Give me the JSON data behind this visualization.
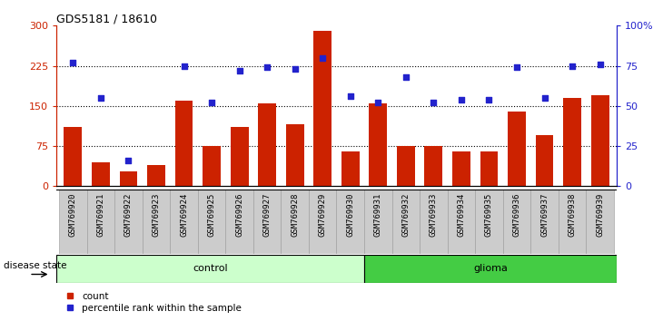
{
  "title": "GDS5181 / 18610",
  "samples": [
    "GSM769920",
    "GSM769921",
    "GSM769922",
    "GSM769923",
    "GSM769924",
    "GSM769925",
    "GSM769926",
    "GSM769927",
    "GSM769928",
    "GSM769929",
    "GSM769930",
    "GSM769931",
    "GSM769932",
    "GSM769933",
    "GSM769934",
    "GSM769935",
    "GSM769936",
    "GSM769937",
    "GSM769938",
    "GSM769939"
  ],
  "counts": [
    110,
    45,
    28,
    40,
    160,
    75,
    110,
    155,
    115,
    290,
    65,
    155,
    75,
    75,
    65,
    65,
    140,
    95,
    165,
    170
  ],
  "percentiles": [
    77,
    55,
    16,
    null,
    75,
    52,
    72,
    74,
    73,
    80,
    56,
    52,
    68,
    52,
    54,
    54,
    74,
    55,
    75,
    76
  ],
  "control_count": 11,
  "ylim_left": [
    0,
    300
  ],
  "ylim_right": [
    0,
    100
  ],
  "yticks_left": [
    0,
    75,
    150,
    225,
    300
  ],
  "ytick_labels_left": [
    "0",
    "75",
    "150",
    "225",
    "300"
  ],
  "ytick_labels_right": [
    "0",
    "25",
    "50",
    "75",
    "100%"
  ],
  "bar_color": "#cc2200",
  "dot_color": "#2222cc",
  "control_bg": "#ccffcc",
  "glioma_bg": "#44cc44",
  "tick_bg": "#cccccc",
  "legend_count_label": "count",
  "legend_pct_label": "percentile rank within the sample",
  "disease_state_label": "disease state",
  "control_label": "control",
  "glioma_label": "glioma"
}
